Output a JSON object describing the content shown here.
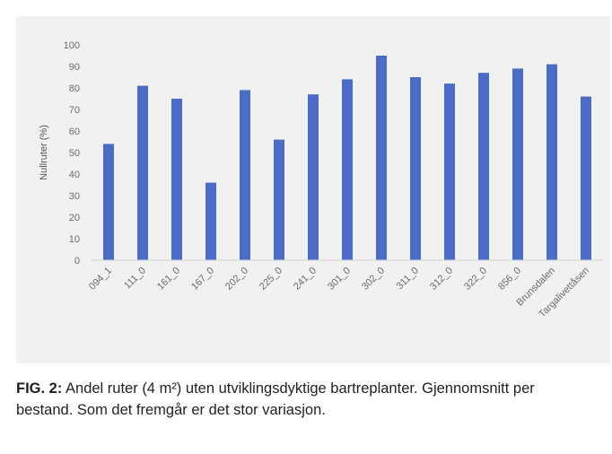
{
  "chart_data": {
    "type": "bar",
    "categories": [
      "094_1",
      "111_0",
      "161_0",
      "167_0",
      "202_0",
      "225_0",
      "241_0",
      "301_0",
      "302_0",
      "311_0",
      "312_0",
      "322_0",
      "856_0",
      "Brunsdalen",
      "Targalivettåsen"
    ],
    "values": [
      54,
      81,
      75,
      36,
      79,
      56,
      77,
      84,
      95,
      85,
      82,
      87,
      89,
      91,
      76
    ],
    "ylabel": "Nullruter (%)",
    "xlabel": "",
    "ylim": [
      0,
      100
    ],
    "yticks": [
      "0",
      "10",
      "20",
      "30",
      "40",
      "50",
      "60",
      "70",
      "80",
      "90",
      "100"
    ],
    "bar_color": "#4a6cc6",
    "grid": false,
    "legend": "none"
  },
  "caption": {
    "label": "FIG. 2:",
    "text": " Andel ruter (4 m²) uten utviklingsdyktige bartreplanter. Gjennomsnitt per bestand. Som det fremgår er det stor variasjon."
  }
}
